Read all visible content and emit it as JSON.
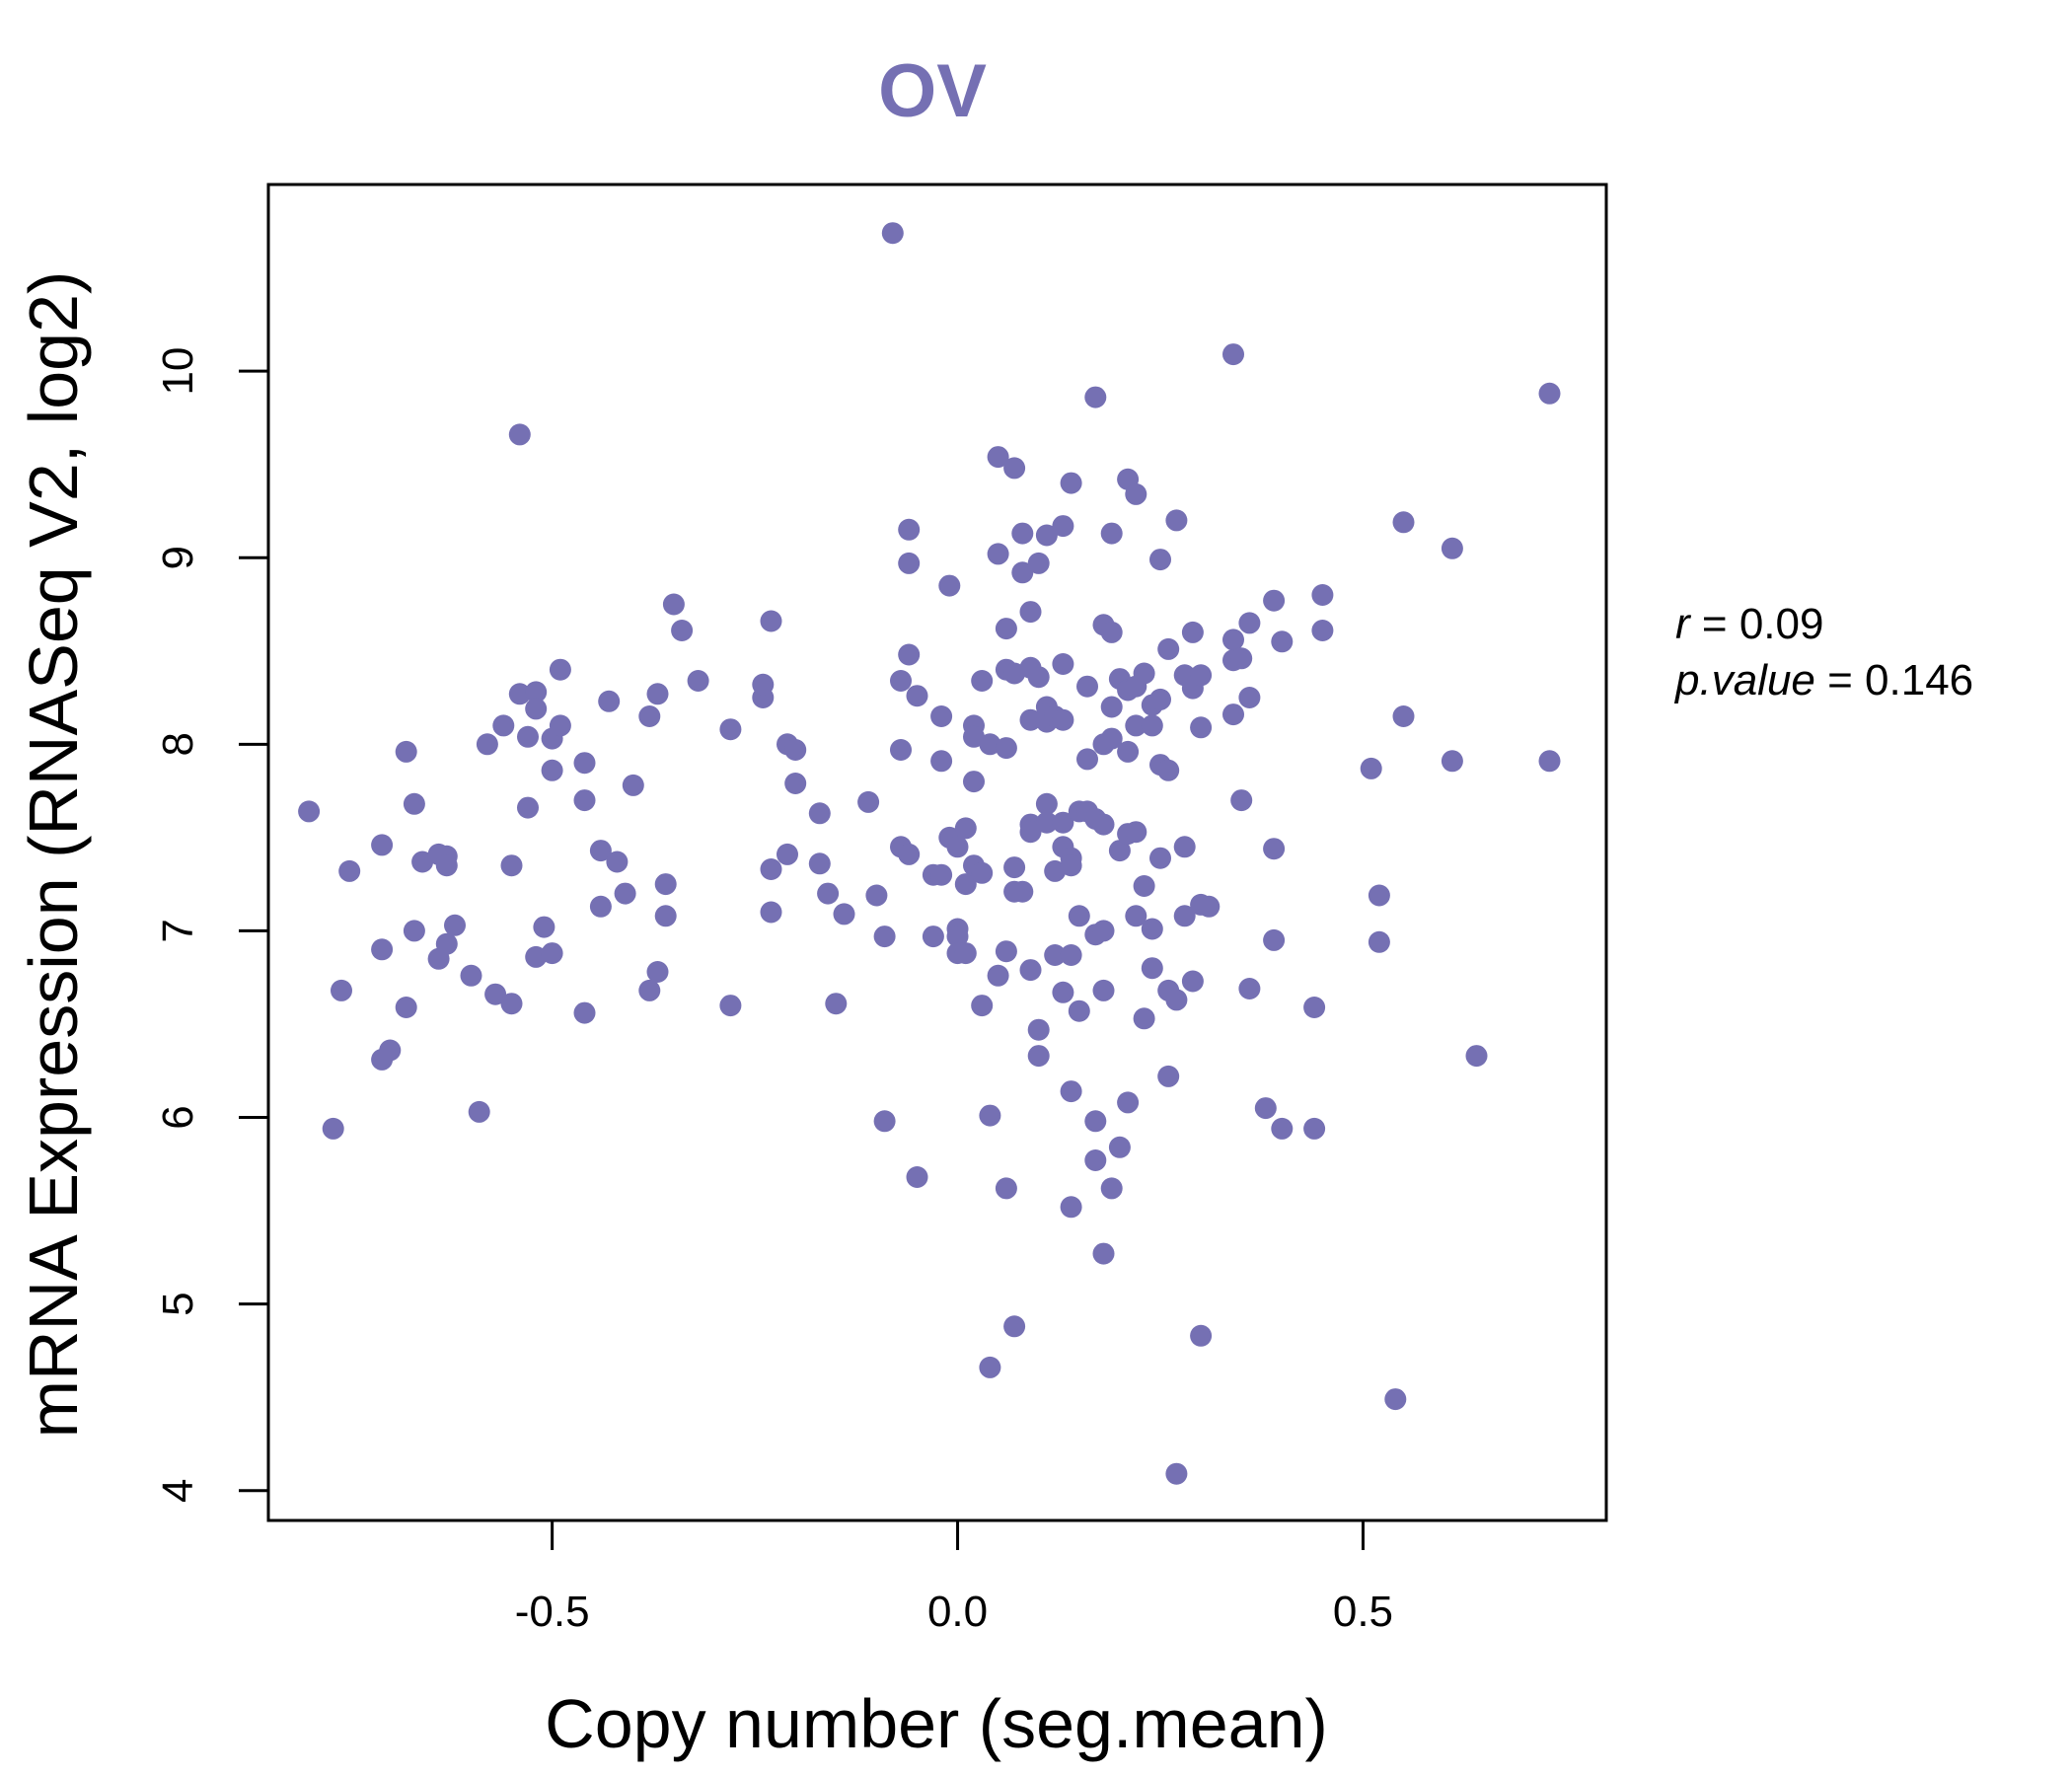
{
  "colors": {
    "accent": "#7570b3",
    "axis": "#000000"
  },
  "chart_data": {
    "type": "scatter",
    "title": "OV",
    "xlabel": "Copy number (seg.mean)",
    "ylabel": "mRNA Expression (RNASeq V2, log2)",
    "xlim": [
      -0.85,
      0.8
    ],
    "ylim": [
      3.84,
      11.0
    ],
    "xticks": [
      -0.5,
      0.0,
      0.5
    ],
    "xtick_labels": [
      "-0.5",
      "0.0",
      "0.5"
    ],
    "yticks": [
      4,
      5,
      6,
      7,
      8,
      9,
      10
    ],
    "ytick_labels": [
      "4",
      "5",
      "6",
      "7",
      "8",
      "9",
      "10"
    ],
    "annotations": {
      "r_label": "r",
      "r_value": "0.09",
      "p_label": "p.value",
      "p_value": "0.146"
    },
    "points": [
      [
        -0.8,
        7.64
      ],
      [
        -0.77,
        5.94
      ],
      [
        -0.76,
        6.68
      ],
      [
        -0.75,
        7.32
      ],
      [
        -0.71,
        7.46
      ],
      [
        -0.71,
        6.9
      ],
      [
        -0.71,
        6.31
      ],
      [
        -0.7,
        6.36
      ],
      [
        -0.68,
        6.59
      ],
      [
        -0.68,
        7.96
      ],
      [
        -0.67,
        7.68
      ],
      [
        -0.67,
        7.0
      ],
      [
        -0.66,
        7.37
      ],
      [
        -0.64,
        7.41
      ],
      [
        -0.63,
        7.4
      ],
      [
        -0.63,
        7.35
      ],
      [
        -0.64,
        6.85
      ],
      [
        -0.63,
        6.93
      ],
      [
        -0.62,
        7.03
      ],
      [
        -0.6,
        6.76
      ],
      [
        -0.59,
        6.03
      ],
      [
        -0.58,
        8.0
      ],
      [
        -0.57,
        6.66
      ],
      [
        -0.56,
        8.1
      ],
      [
        -0.55,
        7.35
      ],
      [
        -0.55,
        6.61
      ],
      [
        -0.54,
        9.66
      ],
      [
        -0.54,
        8.27
      ],
      [
        -0.53,
        8.04
      ],
      [
        -0.52,
        8.28
      ],
      [
        -0.52,
        8.19
      ],
      [
        -0.53,
        7.66
      ],
      [
        -0.52,
        6.86
      ],
      [
        -0.51,
        7.02
      ],
      [
        -0.5,
        6.88
      ],
      [
        -0.5,
        7.86
      ],
      [
        -0.5,
        8.03
      ],
      [
        -0.49,
        8.1
      ],
      [
        -0.49,
        8.4
      ],
      [
        -0.46,
        7.9
      ],
      [
        -0.46,
        7.7
      ],
      [
        -0.46,
        6.56
      ],
      [
        -0.44,
        7.43
      ],
      [
        -0.44,
        7.13
      ],
      [
        -0.43,
        8.23
      ],
      [
        -0.42,
        7.37
      ],
      [
        -0.41,
        7.2
      ],
      [
        -0.4,
        7.78
      ],
      [
        -0.38,
        8.15
      ],
      [
        -0.38,
        6.68
      ],
      [
        -0.37,
        8.27
      ],
      [
        -0.37,
        6.78
      ],
      [
        -0.36,
        7.08
      ],
      [
        -0.36,
        7.25
      ],
      [
        -0.35,
        8.75
      ],
      [
        -0.34,
        8.61
      ],
      [
        -0.32,
        8.34
      ],
      [
        -0.28,
        8.08
      ],
      [
        -0.28,
        6.6
      ],
      [
        -0.24,
        8.25
      ],
      [
        -0.24,
        8.32
      ],
      [
        -0.23,
        8.66
      ],
      [
        -0.23,
        7.33
      ],
      [
        -0.23,
        7.1
      ],
      [
        -0.21,
        8.0
      ],
      [
        -0.21,
        7.41
      ],
      [
        -0.2,
        7.97
      ],
      [
        -0.2,
        7.79
      ],
      [
        -0.17,
        7.63
      ],
      [
        -0.17,
        7.36
      ],
      [
        -0.16,
        7.2
      ],
      [
        -0.15,
        6.61
      ],
      [
        -0.14,
        7.09
      ],
      [
        -0.11,
        7.69
      ],
      [
        -0.1,
        7.19
      ],
      [
        -0.09,
        6.97
      ],
      [
        -0.09,
        5.98
      ],
      [
        -0.08,
        10.74
      ],
      [
        -0.07,
        7.45
      ],
      [
        -0.07,
        8.34
      ],
      [
        -0.07,
        7.97
      ],
      [
        -0.06,
        9.15
      ],
      [
        -0.06,
        8.97
      ],
      [
        -0.06,
        8.48
      ],
      [
        -0.06,
        7.41
      ],
      [
        -0.05,
        8.26
      ],
      [
        -0.05,
        5.68
      ],
      [
        -0.03,
        7.3
      ],
      [
        -0.03,
        6.97
      ],
      [
        -0.02,
        8.15
      ],
      [
        -0.02,
        7.91
      ],
      [
        -0.02,
        7.3
      ],
      [
        -0.01,
        8.85
      ],
      [
        -0.01,
        7.5
      ],
      [
        0.0,
        7.45
      ],
      [
        0.0,
        7.01
      ],
      [
        0.0,
        6.97
      ],
      [
        0.0,
        6.88
      ],
      [
        0.01,
        7.55
      ],
      [
        0.01,
        7.25
      ],
      [
        0.01,
        6.88
      ],
      [
        0.02,
        8.1
      ],
      [
        0.02,
        8.04
      ],
      [
        0.02,
        7.8
      ],
      [
        0.02,
        7.35
      ],
      [
        0.03,
        6.6
      ],
      [
        0.03,
        7.31
      ],
      [
        0.03,
        8.34
      ],
      [
        0.04,
        8.0
      ],
      [
        0.04,
        6.01
      ],
      [
        0.04,
        4.66
      ],
      [
        0.05,
        9.54
      ],
      [
        0.05,
        9.02
      ],
      [
        0.05,
        6.76
      ],
      [
        0.06,
        8.62
      ],
      [
        0.06,
        8.4
      ],
      [
        0.06,
        7.98
      ],
      [
        0.06,
        6.89
      ],
      [
        0.06,
        5.62
      ],
      [
        0.07,
        9.48
      ],
      [
        0.07,
        8.38
      ],
      [
        0.07,
        7.34
      ],
      [
        0.07,
        7.21
      ],
      [
        0.07,
        4.88
      ],
      [
        0.08,
        7.21
      ],
      [
        0.08,
        9.13
      ],
      [
        0.08,
        8.92
      ],
      [
        0.09,
        8.71
      ],
      [
        0.09,
        8.41
      ],
      [
        0.09,
        8.13
      ],
      [
        0.09,
        7.57
      ],
      [
        0.09,
        7.53
      ],
      [
        0.09,
        6.79
      ],
      [
        0.1,
        8.97
      ],
      [
        0.1,
        8.36
      ],
      [
        0.1,
        6.47
      ],
      [
        0.1,
        6.33
      ],
      [
        0.11,
        9.12
      ],
      [
        0.11,
        8.2
      ],
      [
        0.11,
        8.12
      ],
      [
        0.11,
        7.68
      ],
      [
        0.11,
        7.58
      ],
      [
        0.12,
        8.15
      ],
      [
        0.12,
        7.32
      ],
      [
        0.12,
        6.87
      ],
      [
        0.13,
        9.17
      ],
      [
        0.13,
        8.43
      ],
      [
        0.13,
        8.13
      ],
      [
        0.13,
        7.58
      ],
      [
        0.13,
        7.45
      ],
      [
        0.13,
        6.67
      ],
      [
        0.14,
        9.4
      ],
      [
        0.14,
        7.39
      ],
      [
        0.14,
        7.35
      ],
      [
        0.14,
        6.87
      ],
      [
        0.14,
        6.14
      ],
      [
        0.14,
        5.52
      ],
      [
        0.15,
        7.64
      ],
      [
        0.15,
        7.08
      ],
      [
        0.15,
        6.57
      ],
      [
        0.16,
        8.31
      ],
      [
        0.16,
        7.92
      ],
      [
        0.16,
        7.64
      ],
      [
        0.17,
        9.86
      ],
      [
        0.17,
        7.6
      ],
      [
        0.17,
        6.98
      ],
      [
        0.17,
        5.98
      ],
      [
        0.17,
        5.77
      ],
      [
        0.18,
        7.0
      ],
      [
        0.18,
        6.68
      ],
      [
        0.18,
        5.27
      ],
      [
        0.18,
        8.64
      ],
      [
        0.18,
        8.0
      ],
      [
        0.18,
        7.57
      ],
      [
        0.19,
        9.13
      ],
      [
        0.19,
        8.6
      ],
      [
        0.19,
        8.2
      ],
      [
        0.19,
        8.03
      ],
      [
        0.19,
        5.62
      ],
      [
        0.2,
        8.35
      ],
      [
        0.2,
        7.43
      ],
      [
        0.2,
        5.84
      ],
      [
        0.21,
        9.42
      ],
      [
        0.21,
        8.29
      ],
      [
        0.21,
        7.96
      ],
      [
        0.21,
        7.52
      ],
      [
        0.21,
        6.08
      ],
      [
        0.22,
        8.31
      ],
      [
        0.22,
        7.08
      ],
      [
        0.22,
        8.1
      ],
      [
        0.22,
        7.53
      ],
      [
        0.22,
        9.34
      ],
      [
        0.23,
        8.38
      ],
      [
        0.23,
        7.24
      ],
      [
        0.23,
        6.53
      ],
      [
        0.24,
        8.21
      ],
      [
        0.24,
        8.1
      ],
      [
        0.24,
        7.01
      ],
      [
        0.24,
        6.8
      ],
      [
        0.25,
        7.89
      ],
      [
        0.25,
        8.24
      ],
      [
        0.25,
        8.99
      ],
      [
        0.25,
        7.39
      ],
      [
        0.26,
        8.51
      ],
      [
        0.26,
        7.86
      ],
      [
        0.26,
        6.68
      ],
      [
        0.26,
        6.22
      ],
      [
        0.27,
        4.09
      ],
      [
        0.27,
        9.2
      ],
      [
        0.27,
        6.63
      ],
      [
        0.28,
        8.37
      ],
      [
        0.28,
        7.45
      ],
      [
        0.28,
        7.08
      ],
      [
        0.29,
        8.6
      ],
      [
        0.29,
        8.3
      ],
      [
        0.29,
        6.73
      ],
      [
        0.3,
        8.37
      ],
      [
        0.3,
        8.09
      ],
      [
        0.3,
        7.14
      ],
      [
        0.3,
        4.83
      ],
      [
        0.31,
        7.13
      ],
      [
        0.34,
        10.09
      ],
      [
        0.34,
        8.56
      ],
      [
        0.34,
        8.45
      ],
      [
        0.34,
        8.16
      ],
      [
        0.35,
        8.46
      ],
      [
        0.35,
        7.7
      ],
      [
        0.36,
        8.65
      ],
      [
        0.36,
        8.25
      ],
      [
        0.36,
        6.69
      ],
      [
        0.38,
        6.05
      ],
      [
        0.39,
        8.77
      ],
      [
        0.39,
        7.44
      ],
      [
        0.39,
        6.95
      ],
      [
        0.4,
        8.55
      ],
      [
        0.4,
        5.94
      ],
      [
        0.44,
        6.59
      ],
      [
        0.44,
        5.94
      ],
      [
        0.45,
        8.8
      ],
      [
        0.45,
        8.61
      ],
      [
        0.51,
        7.87
      ],
      [
        0.52,
        7.19
      ],
      [
        0.52,
        6.94
      ],
      [
        0.54,
        4.49
      ],
      [
        0.55,
        9.19
      ],
      [
        0.55,
        8.15
      ],
      [
        0.61,
        7.91
      ],
      [
        0.61,
        9.05
      ],
      [
        0.64,
        6.33
      ],
      [
        0.73,
        9.88
      ],
      [
        0.73,
        7.91
      ]
    ]
  }
}
